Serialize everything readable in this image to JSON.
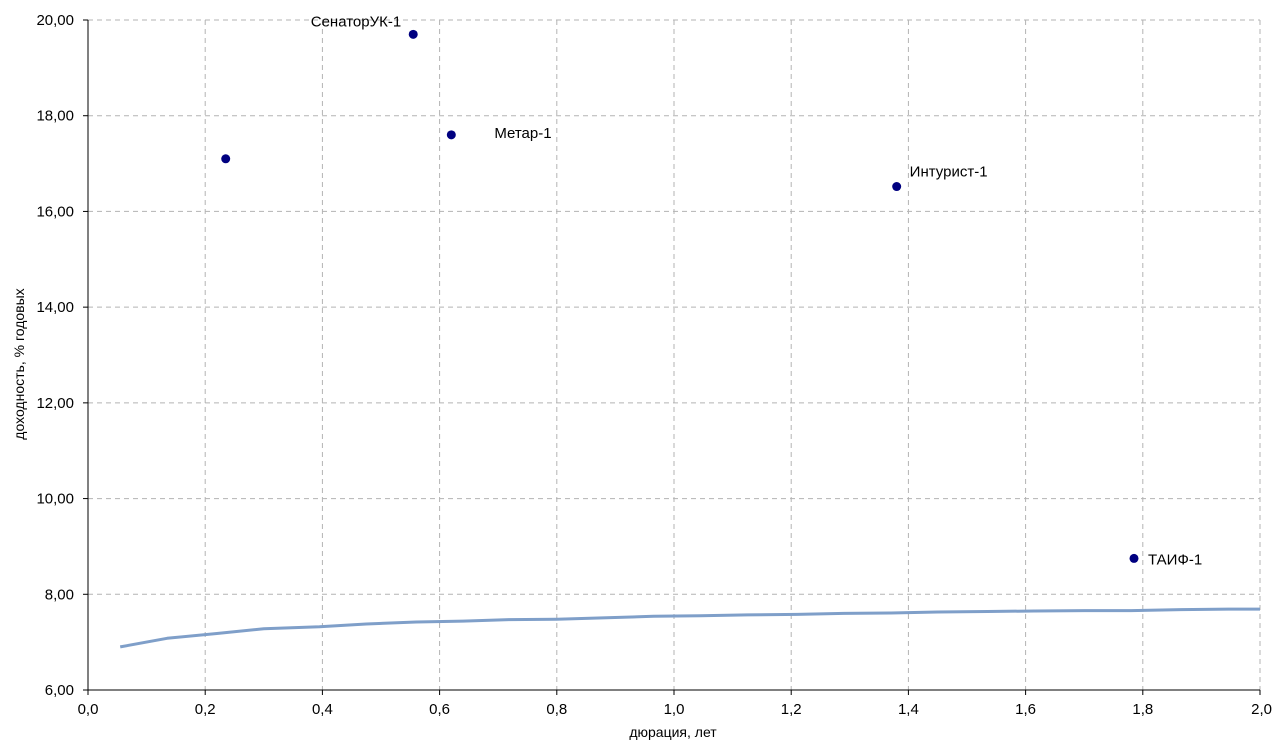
{
  "chart_data": {
    "type": "scatter",
    "title": "",
    "xlabel": "дюрация, лет",
    "ylabel": "доходность, % годовых",
    "xlim": [
      0.0,
      2.0
    ],
    "ylim": [
      6.0,
      20.0
    ],
    "x_ticks": [
      "0,0",
      "0,2",
      "0,4",
      "0,6",
      "0,8",
      "1,0",
      "1,2",
      "1,4",
      "1,6",
      "1,8",
      "2,0"
    ],
    "y_ticks": [
      "6,00",
      "8,00",
      "10,00",
      "12,00",
      "14,00",
      "16,00",
      "18,00",
      "20,00"
    ],
    "grid": true,
    "colors": {
      "points": "#000080",
      "curve": "#7f9fc9",
      "grid": "#b3b3b3",
      "axis": "#000000"
    },
    "points": [
      {
        "x": 0.235,
        "y": 17.1,
        "label": ""
      },
      {
        "x": 0.555,
        "y": 19.7,
        "label": "СенаторУК-1"
      },
      {
        "x": 0.62,
        "y": 17.6,
        "label": "Метар-1"
      },
      {
        "x": 1.38,
        "y": 16.52,
        "label": "Интурист-1"
      },
      {
        "x": 1.785,
        "y": 8.75,
        "label": "ТАИФ-1"
      }
    ],
    "curve": {
      "x": [
        0.055,
        0.135,
        0.22,
        0.3,
        0.395,
        0.475,
        0.56,
        0.64,
        0.72,
        0.8,
        0.885,
        0.965,
        1.045,
        1.125,
        1.21,
        1.29,
        1.37,
        1.45,
        1.535,
        1.615,
        1.7,
        1.78,
        1.865,
        1.945,
        2.0
      ],
      "y": [
        6.9,
        7.08,
        7.18,
        7.28,
        7.32,
        7.38,
        7.42,
        7.44,
        7.47,
        7.48,
        7.51,
        7.54,
        7.55,
        7.57,
        7.58,
        7.6,
        7.61,
        7.63,
        7.64,
        7.65,
        7.66,
        7.66,
        7.68,
        7.69,
        7.69
      ]
    }
  }
}
